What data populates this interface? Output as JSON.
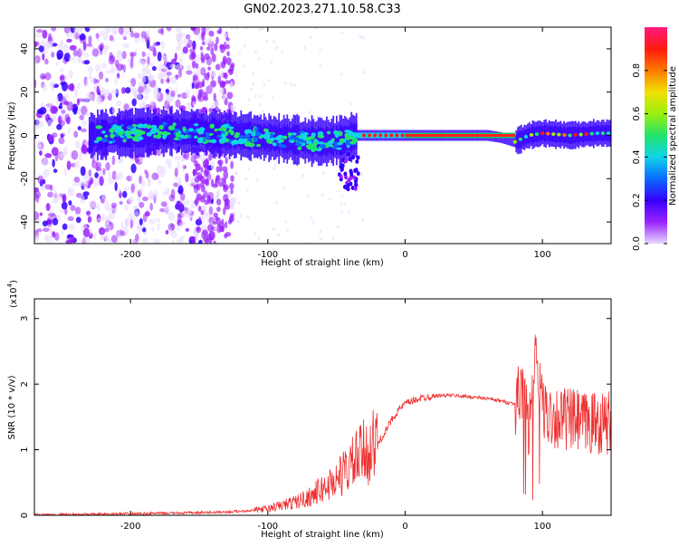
{
  "figure": {
    "title": "GN02.2023.271.10.58.C33"
  },
  "chart_data": [
    {
      "type": "heatmap",
      "title": "GN02.2023.271.10.58.C33",
      "xlabel": "Height of straight line (km)",
      "ylabel": "Frequency (Hz)",
      "xlim": [
        -270,
        150
      ],
      "ylim": [
        -50,
        50
      ],
      "x_ticks": [
        -200,
        -100,
        0,
        100
      ],
      "y_ticks": [
        -40,
        -20,
        0,
        20,
        40
      ],
      "colorbar": {
        "label": "Normalized spectral amplitude",
        "range": [
          0.0,
          1.0
        ],
        "ticks": [
          0.0,
          0.2,
          0.4,
          0.6,
          0.8
        ],
        "colormap": [
          "#e8d8ff",
          "#9a22ff",
          "#3500ff",
          "#0a6bff",
          "#10d4e8",
          "#22e36a",
          "#9bef10",
          "#f0e000",
          "#ff7a00",
          "#ff1a10",
          "#ff1a80"
        ]
      },
      "ridge": {
        "description_points_x": [
          -230,
          -200,
          -170,
          -140,
          -120,
          -100,
          -80,
          -60,
          -45,
          -35,
          -20,
          0,
          20,
          60,
          70,
          80,
          90,
          100,
          120,
          140,
          150
        ],
        "center_frequency_hz": [
          0,
          1,
          2,
          1,
          0,
          -1,
          -2,
          -3,
          -2,
          0,
          0,
          0,
          0,
          0,
          -1,
          -3,
          0,
          1,
          0,
          1,
          1
        ],
        "narrowband_segment_x": [
          -35,
          80
        ]
      }
    },
    {
      "type": "line",
      "xlabel": "Height of straight line (km)",
      "ylabel": "SNR (10 * v/v)",
      "y_multiplier_label": "(x10",
      "y_multiplier_exp": "4",
      "y_multiplier_close": ")",
      "xlim": [
        -270,
        150
      ],
      "ylim": [
        0,
        3.3
      ],
      "x_ticks": [
        -200,
        -100,
        0,
        100
      ],
      "y_ticks": [
        0,
        1,
        2,
        3
      ],
      "color": "#ee3030",
      "series": [
        {
          "x": [
            -270,
            -240,
            -210,
            -180,
            -150,
            -130,
            -115,
            -100,
            -90,
            -80,
            -70,
            -60,
            -50,
            -40,
            -30,
            -20,
            -15,
            -10,
            -5,
            0,
            10,
            20,
            30,
            40,
            50,
            60,
            70,
            80,
            85,
            90,
            95,
            100,
            110,
            120,
            130,
            140,
            150
          ],
          "values": [
            0.01,
            0.01,
            0.02,
            0.03,
            0.04,
            0.05,
            0.07,
            0.1,
            0.15,
            0.2,
            0.28,
            0.4,
            0.55,
            0.75,
            0.95,
            1.1,
            1.25,
            1.45,
            1.6,
            1.7,
            1.78,
            1.82,
            1.83,
            1.82,
            1.8,
            1.78,
            1.74,
            1.7,
            1.9,
            1.3,
            2.4,
            1.6,
            1.5,
            1.45,
            1.4,
            1.42,
            1.4
          ]
        }
      ]
    }
  ]
}
